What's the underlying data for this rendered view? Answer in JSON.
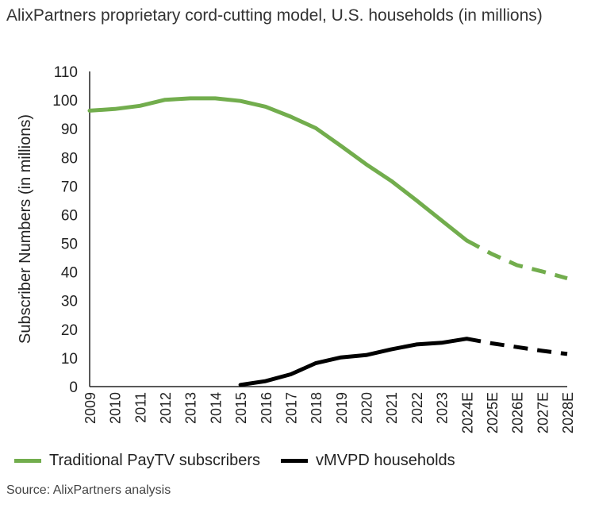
{
  "title": "AlixPartners proprietary cord-cutting model, U.S. households (in millions)",
  "source": "Source: AlixPartners analysis",
  "colors": {
    "paytv": "#72ad4d",
    "vmvpd": "#000000",
    "axis": "#222222"
  },
  "chart_data": {
    "type": "line",
    "title": "AlixPartners proprietary cord-cutting model, U.S. households (in millions)",
    "xlabel": "",
    "ylabel": "Subscriber Numbers (in millions)",
    "ylim": [
      0,
      110
    ],
    "yticks": [
      0,
      10,
      20,
      30,
      40,
      50,
      60,
      70,
      80,
      90,
      100,
      110
    ],
    "categories": [
      "2009",
      "2010",
      "2011",
      "2012",
      "2013",
      "2014",
      "2015",
      "2016",
      "2017",
      "2018",
      "2019",
      "2020",
      "2021",
      "2022",
      "2023",
      "2024E",
      "2025E",
      "2026E",
      "2027E",
      "2028E"
    ],
    "projection_start": "2024E",
    "series": [
      {
        "name": "Traditional PayTV subscribers",
        "values": [
          96.3,
          96.9,
          98.0,
          100.1,
          100.6,
          100.6,
          99.7,
          97.7,
          94.2,
          90.2,
          84.0,
          77.6,
          71.8,
          65.0,
          58.0,
          51.0,
          46.3,
          42.4,
          40.2,
          37.8
        ]
      },
      {
        "name": "vMVPD households",
        "values": [
          null,
          null,
          null,
          null,
          null,
          null,
          0.6,
          1.9,
          4.3,
          8.2,
          10.2,
          11.0,
          13.0,
          14.7,
          15.3,
          16.7,
          15.1,
          13.8,
          12.5,
          11.4
        ]
      }
    ],
    "legend_position": "bottom-left"
  }
}
